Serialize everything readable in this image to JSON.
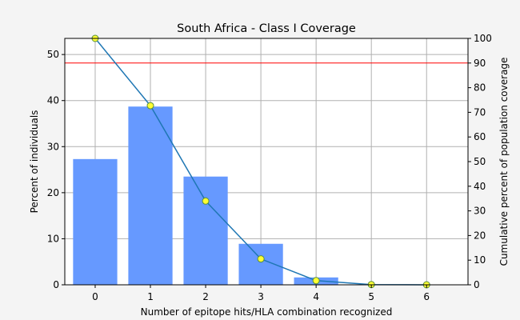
{
  "chart_data": {
    "type": "bar",
    "title": "South Africa - Class I Coverage",
    "xlabel": "Number of epitope hits/HLA combination recognized",
    "ylabel": "Percent of individuals",
    "y2label": "Cumulative percent of population coverage",
    "categories": [
      "0",
      "1",
      "2",
      "3",
      "4",
      "5",
      "6"
    ],
    "xlim": [
      -0.55,
      6.75
    ],
    "ylim": [
      0,
      53.5
    ],
    "y2lim": [
      0,
      100
    ],
    "yticks": [
      "0",
      "10",
      "20",
      "30",
      "40",
      "50"
    ],
    "y2ticks": [
      "0",
      "10",
      "20",
      "30",
      "40",
      "50",
      "60",
      "70",
      "80",
      "90",
      "100"
    ],
    "grid": true,
    "series": [
      {
        "kind": "bar",
        "axis": "left",
        "color": "#6699ff",
        "values": [
          27.3,
          38.7,
          23.5,
          8.9,
          1.6,
          0.1,
          0.0
        ]
      },
      {
        "kind": "line",
        "axis": "right",
        "color": "#1f77b4",
        "marker_color": "#ffff33",
        "values": [
          100,
          72.7,
          34.0,
          10.5,
          1.7,
          0.1,
          0.0
        ]
      }
    ],
    "reference_line": {
      "axis": "right",
      "value": 90,
      "color": "#ff0000"
    }
  }
}
